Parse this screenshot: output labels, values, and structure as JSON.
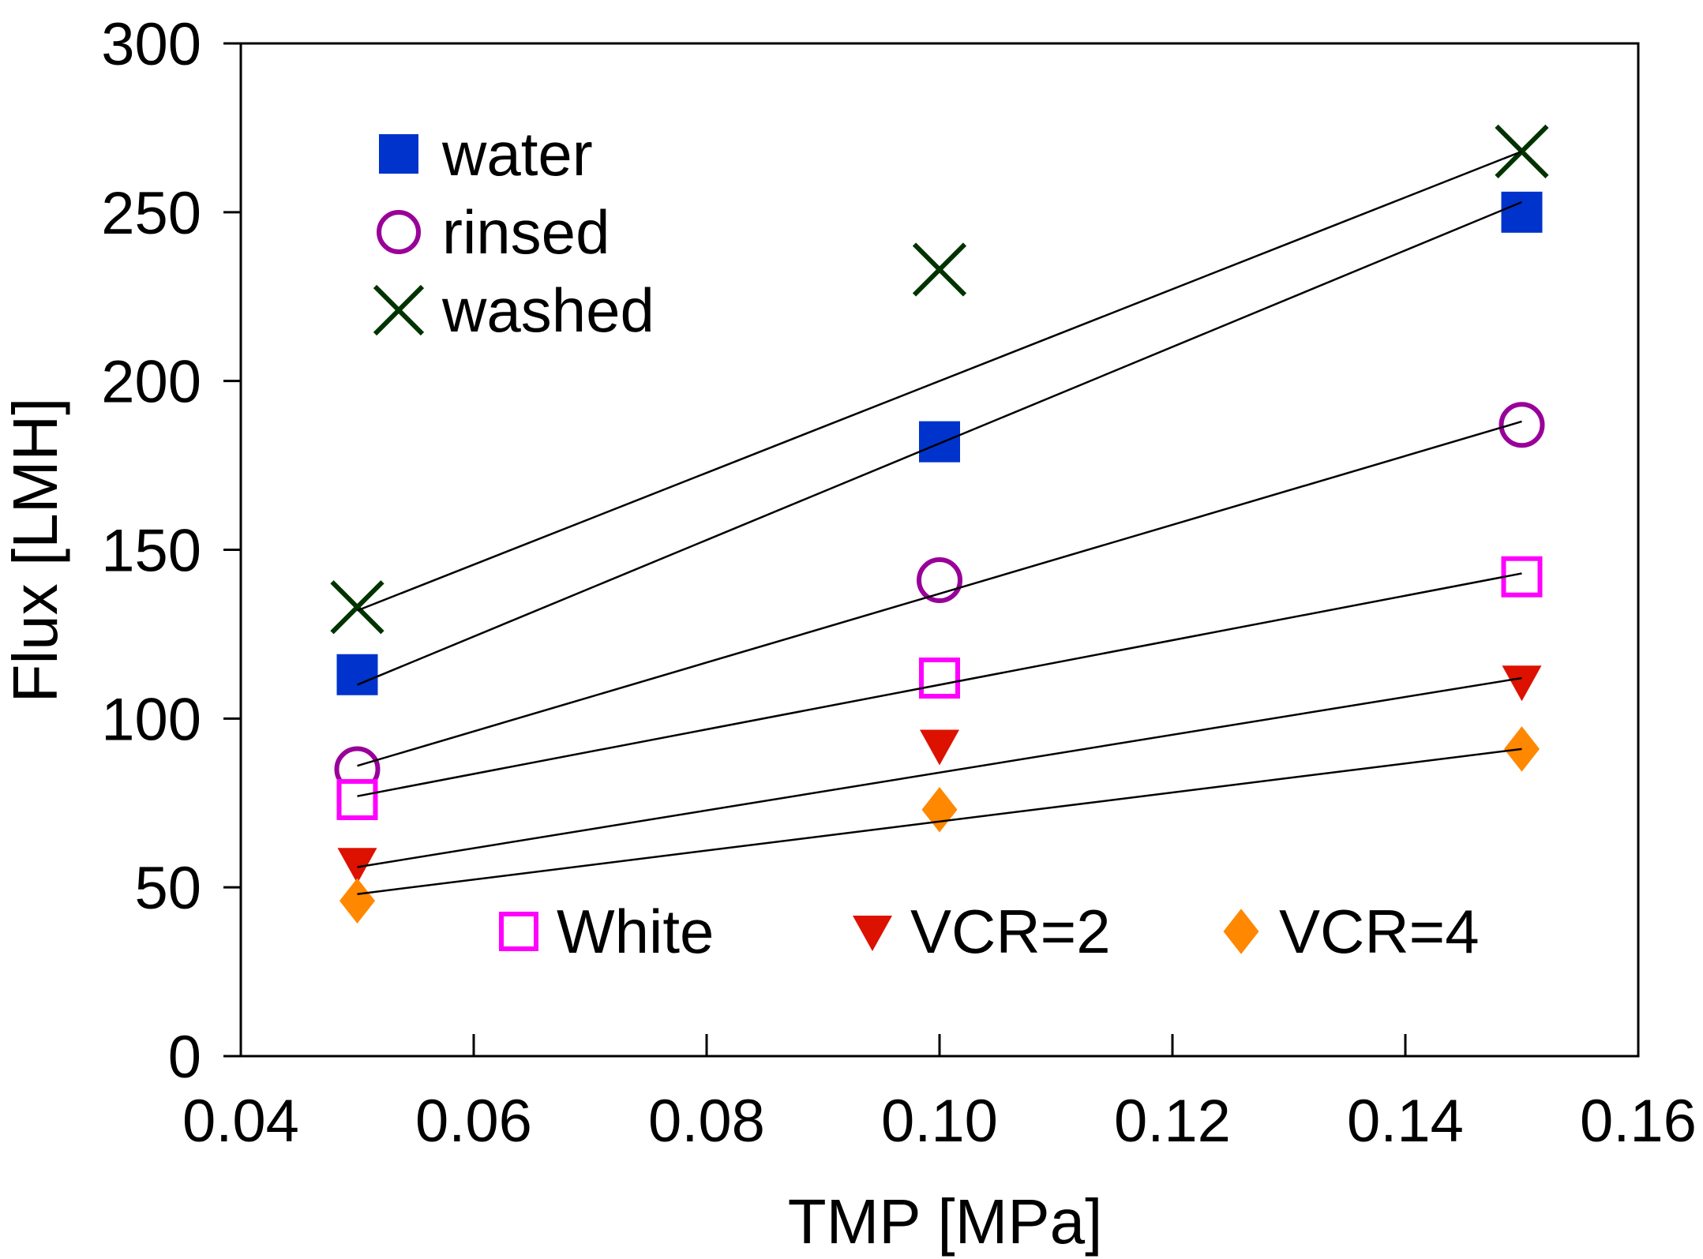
{
  "chart_data": {
    "type": "scatter",
    "xlabel": "TMP [MPa]",
    "ylabel": "Flux [LMH]",
    "xlim": [
      0.04,
      0.16
    ],
    "ylim": [
      0,
      300
    ],
    "x_ticks": [
      "0.04",
      "0.06",
      "0.08",
      "0.10",
      "0.12",
      "0.14",
      "0.16"
    ],
    "y_ticks": [
      "0",
      "50",
      "100",
      "150",
      "200",
      "250",
      "300"
    ],
    "grid": false,
    "legend_top": [
      {
        "name": "water",
        "marker": "square-filled"
      },
      {
        "name": "rinsed",
        "marker": "circle-open"
      },
      {
        "name": "washed",
        "marker": "x"
      }
    ],
    "legend_bottom": [
      {
        "name": "White",
        "marker": "square-open"
      },
      {
        "name": "VCR=2",
        "marker": "triangle-down"
      },
      {
        "name": "VCR=4",
        "marker": "diamond"
      }
    ],
    "series": [
      {
        "name": "washed",
        "color": "#003300",
        "marker": "x",
        "x": [
          0.05,
          0.1,
          0.15
        ],
        "y": [
          133,
          233,
          268
        ],
        "fit": [
          [
            0.05,
            132
          ],
          [
            0.15,
            268
          ]
        ]
      },
      {
        "name": "water",
        "color": "#0033cc",
        "marker": "square-filled",
        "x": [
          0.05,
          0.1,
          0.15
        ],
        "y": [
          113,
          182,
          250
        ],
        "fit": [
          [
            0.05,
            110
          ],
          [
            0.15,
            253
          ]
        ]
      },
      {
        "name": "rinsed",
        "color": "#990099",
        "marker": "circle-open",
        "x": [
          0.05,
          0.1,
          0.15
        ],
        "y": [
          85,
          141,
          187
        ],
        "fit": [
          [
            0.05,
            86
          ],
          [
            0.15,
            188
          ]
        ]
      },
      {
        "name": "White",
        "color": "#ff00ff",
        "marker": "square-open",
        "x": [
          0.05,
          0.1,
          0.15
        ],
        "y": [
          76,
          112,
          142
        ],
        "fit": [
          [
            0.05,
            77
          ],
          [
            0.15,
            143
          ]
        ]
      },
      {
        "name": "VCR=2",
        "color": "#dd1100",
        "marker": "triangle-down",
        "x": [
          0.05,
          0.1,
          0.15
        ],
        "y": [
          57,
          92,
          111
        ],
        "fit": [
          [
            0.05,
            56
          ],
          [
            0.15,
            112
          ]
        ]
      },
      {
        "name": "VCR=4",
        "color": "#ff8800",
        "marker": "diamond",
        "x": [
          0.05,
          0.1,
          0.15
        ],
        "y": [
          46,
          73,
          91
        ],
        "fit": [
          [
            0.05,
            48
          ],
          [
            0.15,
            91
          ]
        ]
      }
    ]
  }
}
